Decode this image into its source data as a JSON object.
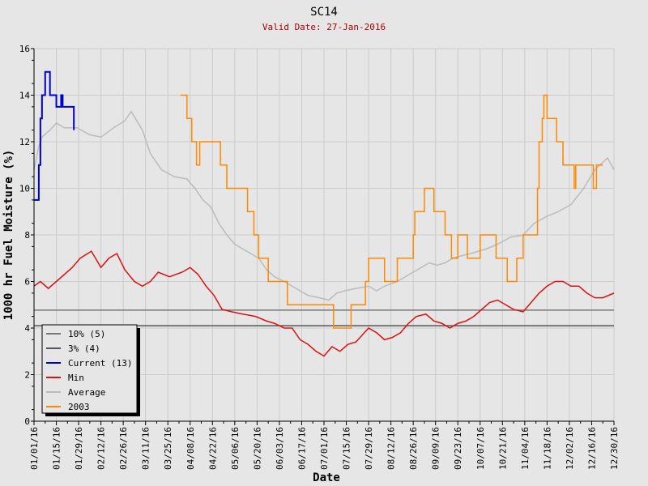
{
  "chart_data": {
    "type": "line",
    "title": "SC14",
    "subtitle": "Valid Date: 27-Jan-2016",
    "xlabel": "Date",
    "ylabel": "1000 hr Fuel Moisture (%)",
    "ylim": [
      0,
      16
    ],
    "xlim_days": [
      0,
      364
    ],
    "yticks": [
      "0",
      "2",
      "4",
      "6",
      "8",
      "10",
      "12",
      "14",
      "16"
    ],
    "xticks": [
      "01/01/16",
      "01/15/16",
      "01/29/16",
      "02/12/16",
      "02/26/16",
      "03/11/16",
      "03/25/16",
      "04/08/16",
      "04/22/16",
      "05/06/16",
      "05/20/16",
      "06/03/16",
      "06/17/16",
      "07/01/16",
      "07/15/16",
      "07/29/16",
      "08/12/16",
      "08/26/16",
      "09/09/16",
      "09/23/16",
      "10/07/16",
      "10/21/16",
      "11/04/16",
      "11/18/16",
      "12/02/16",
      "12/16/16",
      "12/30/16"
    ],
    "grid": true,
    "legend_placement": "bottom-left",
    "thresholds": [
      {
        "name": "10% (5)",
        "value": 4.77,
        "color": "#777777"
      },
      {
        "name": "3% (4)",
        "value": 4.1,
        "color": "#555555"
      }
    ],
    "series": [
      {
        "name": "Current (13)",
        "color": "#0000cc",
        "step": true,
        "points": [
          [
            0,
            9.5
          ],
          [
            2,
            9.5
          ],
          [
            3,
            11
          ],
          [
            4,
            13
          ],
          [
            5,
            14
          ],
          [
            7,
            15
          ],
          [
            9,
            15
          ],
          [
            10,
            14
          ],
          [
            13,
            14
          ],
          [
            14,
            13.5
          ],
          [
            16,
            13.5
          ],
          [
            17,
            14
          ],
          [
            18,
            13.5
          ],
          [
            24,
            13.5
          ],
          [
            25,
            12.5
          ]
        ]
      },
      {
        "name": "Min",
        "color": "#dd1111",
        "step": false,
        "points": [
          [
            0,
            5.8
          ],
          [
            4,
            6.0
          ],
          [
            9,
            5.7
          ],
          [
            14,
            6.0
          ],
          [
            19,
            6.3
          ],
          [
            24,
            6.6
          ],
          [
            29,
            7.0
          ],
          [
            36,
            7.3
          ],
          [
            42,
            6.6
          ],
          [
            47,
            7.0
          ],
          [
            52,
            7.2
          ],
          [
            57,
            6.5
          ],
          [
            63,
            6.0
          ],
          [
            68,
            5.8
          ],
          [
            73,
            6.0
          ],
          [
            78,
            6.4
          ],
          [
            85,
            6.2
          ],
          [
            93,
            6.4
          ],
          [
            98,
            6.6
          ],
          [
            103,
            6.3
          ],
          [
            108,
            5.8
          ],
          [
            113,
            5.4
          ],
          [
            118,
            4.8
          ],
          [
            124,
            4.7
          ],
          [
            131,
            4.6
          ],
          [
            139,
            4.5
          ],
          [
            146,
            4.3
          ],
          [
            151,
            4.2
          ],
          [
            157,
            4.0
          ],
          [
            162,
            4.0
          ],
          [
            167,
            3.5
          ],
          [
            172,
            3.3
          ],
          [
            177,
            3.0
          ],
          [
            182,
            2.8
          ],
          [
            187,
            3.2
          ],
          [
            192,
            3.0
          ],
          [
            197,
            3.3
          ],
          [
            202,
            3.4
          ],
          [
            210,
            4.0
          ],
          [
            215,
            3.8
          ],
          [
            220,
            3.5
          ],
          [
            225,
            3.6
          ],
          [
            230,
            3.8
          ],
          [
            235,
            4.2
          ],
          [
            240,
            4.5
          ],
          [
            246,
            4.6
          ],
          [
            251,
            4.3
          ],
          [
            256,
            4.2
          ],
          [
            261,
            4.0
          ],
          [
            266,
            4.2
          ],
          [
            271,
            4.3
          ],
          [
            276,
            4.5
          ],
          [
            281,
            4.8
          ],
          [
            286,
            5.1
          ],
          [
            291,
            5.2
          ],
          [
            296,
            5.0
          ],
          [
            301,
            4.8
          ],
          [
            307,
            4.7
          ],
          [
            312,
            5.1
          ],
          [
            317,
            5.5
          ],
          [
            322,
            5.8
          ],
          [
            327,
            6.0
          ],
          [
            332,
            6.0
          ],
          [
            337,
            5.8
          ],
          [
            342,
            5.8
          ],
          [
            347,
            5.5
          ],
          [
            352,
            5.3
          ],
          [
            357,
            5.3
          ],
          [
            364,
            5.5
          ]
        ]
      },
      {
        "name": "Average",
        "color": "#bbbbbb",
        "step": false,
        "points": [
          [
            0,
            10.8
          ],
          [
            3,
            11.8
          ],
          [
            5,
            12.2
          ],
          [
            10,
            12.5
          ],
          [
            14,
            12.8
          ],
          [
            19,
            12.6
          ],
          [
            27,
            12.6
          ],
          [
            35,
            12.3
          ],
          [
            42,
            12.2
          ],
          [
            50,
            12.6
          ],
          [
            57,
            12.9
          ],
          [
            61,
            13.3
          ],
          [
            68,
            12.5
          ],
          [
            73,
            11.5
          ],
          [
            80,
            10.8
          ],
          [
            88,
            10.5
          ],
          [
            96,
            10.4
          ],
          [
            101,
            10.0
          ],
          [
            106,
            9.5
          ],
          [
            111,
            9.2
          ],
          [
            116,
            8.5
          ],
          [
            121,
            8.0
          ],
          [
            126,
            7.6
          ],
          [
            131,
            7.4
          ],
          [
            136,
            7.2
          ],
          [
            141,
            7.0
          ],
          [
            146,
            6.5
          ],
          [
            151,
            6.2
          ],
          [
            157,
            6.0
          ],
          [
            162,
            5.8
          ],
          [
            167,
            5.6
          ],
          [
            172,
            5.4
          ],
          [
            179,
            5.3
          ],
          [
            185,
            5.2
          ],
          [
            190,
            5.5
          ],
          [
            195,
            5.6
          ],
          [
            202,
            5.7
          ],
          [
            210,
            5.8
          ],
          [
            215,
            5.6
          ],
          [
            220,
            5.8
          ],
          [
            228,
            6.0
          ],
          [
            233,
            6.2
          ],
          [
            238,
            6.4
          ],
          [
            243,
            6.6
          ],
          [
            248,
            6.8
          ],
          [
            253,
            6.7
          ],
          [
            258,
            6.8
          ],
          [
            263,
            7.0
          ],
          [
            268,
            7.1
          ],
          [
            274,
            7.2
          ],
          [
            279,
            7.3
          ],
          [
            284,
            7.4
          ],
          [
            291,
            7.6
          ],
          [
            299,
            7.9
          ],
          [
            307,
            8.0
          ],
          [
            314,
            8.5
          ],
          [
            322,
            8.8
          ],
          [
            329,
            9.0
          ],
          [
            337,
            9.3
          ],
          [
            345,
            10.0
          ],
          [
            352,
            10.8
          ],
          [
            360,
            11.3
          ],
          [
            364,
            10.8
          ]
        ]
      },
      {
        "name": "2003",
        "color": "#ff8800",
        "step": true,
        "points": [
          [
            92,
            14
          ],
          [
            96,
            13
          ],
          [
            99,
            12
          ],
          [
            102,
            11
          ],
          [
            104,
            12
          ],
          [
            117,
            11
          ],
          [
            121,
            10
          ],
          [
            134,
            9
          ],
          [
            138,
            8
          ],
          [
            141,
            7
          ],
          [
            147,
            6
          ],
          [
            159,
            5
          ],
          [
            188,
            4
          ],
          [
            199,
            5
          ],
          [
            208,
            6
          ],
          [
            210,
            7
          ],
          [
            220,
            6
          ],
          [
            228,
            7
          ],
          [
            238,
            8
          ],
          [
            239,
            9
          ],
          [
            245,
            10
          ],
          [
            251,
            9
          ],
          [
            258,
            8
          ],
          [
            262,
            7
          ],
          [
            266,
            8
          ],
          [
            272,
            7
          ],
          [
            280,
            8
          ],
          [
            290,
            7
          ],
          [
            297,
            6
          ],
          [
            303,
            7
          ],
          [
            307,
            8
          ],
          [
            314,
            8
          ],
          [
            316,
            10
          ],
          [
            317,
            12
          ],
          [
            319,
            13
          ],
          [
            320,
            14
          ],
          [
            322,
            13
          ],
          [
            328,
            12
          ],
          [
            332,
            11
          ],
          [
            339,
            10
          ],
          [
            340,
            11
          ],
          [
            351,
            10
          ],
          [
            353,
            11
          ],
          [
            357,
            11
          ]
        ]
      }
    ],
    "legend": [
      "10% (5)",
      "3% (4)",
      "Current (13)",
      "Min",
      "Average",
      "2003"
    ]
  }
}
